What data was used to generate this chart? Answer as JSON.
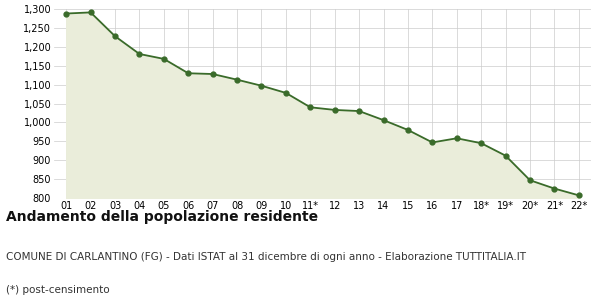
{
  "x_labels": [
    "01",
    "02",
    "03",
    "04",
    "05",
    "06",
    "07",
    "08",
    "09",
    "10",
    "11*",
    "12",
    "13",
    "14",
    "15",
    "16",
    "17",
    "18*",
    "19*",
    "20*",
    "21*",
    "22*"
  ],
  "values": [
    1288,
    1291,
    1228,
    1181,
    1168,
    1130,
    1128,
    1113,
    1097,
    1078,
    1040,
    1033,
    1030,
    1006,
    980,
    947,
    958,
    945,
    912,
    847,
    825,
    807
  ],
  "line_color": "#3a6b2a",
  "fill_color": "#eaedda",
  "marker_color": "#3a6b2a",
  "bg_color": "#ffffff",
  "grid_color": "#cccccc",
  "ylim": [
    800,
    1300
  ],
  "yticks": [
    800,
    850,
    900,
    950,
    1000,
    1050,
    1100,
    1150,
    1200,
    1250,
    1300
  ],
  "title": "Andamento della popolazione residente",
  "subtitle": "COMUNE DI CARLANTINO (FG) - Dati ISTAT al 31 dicembre di ogni anno - Elaborazione TUTTITALIA.IT",
  "footnote": "(*) post-censimento",
  "title_fontsize": 10,
  "subtitle_fontsize": 7.5,
  "footnote_fontsize": 7.5
}
